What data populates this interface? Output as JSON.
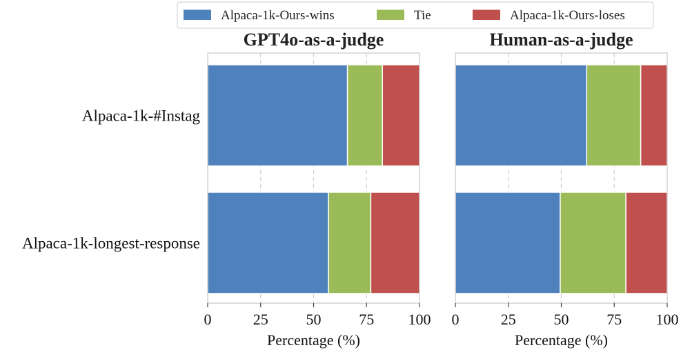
{
  "legend": [
    {
      "label": "Alpaca-1k-Ours-wins",
      "color": "#4f81bd"
    },
    {
      "label": "Tie",
      "color": "#9bbb59"
    },
    {
      "label": "Alpaca-1k-Ours-loses",
      "color": "#c0504d"
    }
  ],
  "chart_data": [
    {
      "type": "bar",
      "orientation": "horizontal-stacked",
      "title": "GPT4o-as-a-judge",
      "categories": [
        "Alpaca-1k-#Instag",
        "Alpaca-1k-longest-response"
      ],
      "series": [
        {
          "name": "Alpaca-1k-Ours-wins",
          "values": [
            66,
            57
          ]
        },
        {
          "name": "Tie",
          "values": [
            16.5,
            20
          ]
        },
        {
          "name": "Alpaca-1k-Ours-loses",
          "values": [
            17.5,
            23
          ]
        }
      ],
      "xlabel": "Percentage (%)",
      "xlim": [
        0,
        100
      ],
      "xticks": [
        "0",
        "25",
        "50",
        "75",
        "100"
      ],
      "grid": "vertical dashed",
      "legend_position": "top"
    },
    {
      "type": "bar",
      "orientation": "horizontal-stacked",
      "title": "Human-as-a-judge",
      "categories": [
        "Alpaca-1k-#Instag",
        "Alpaca-1k-longest-response"
      ],
      "series": [
        {
          "name": "Alpaca-1k-Ours-wins",
          "values": [
            62,
            49.5
          ]
        },
        {
          "name": "Tie",
          "values": [
            25.5,
            31
          ]
        },
        {
          "name": "Alpaca-1k-Ours-loses",
          "values": [
            12.5,
            19.5
          ]
        }
      ],
      "xlabel": "Percentage (%)",
      "xlim": [
        0,
        100
      ],
      "xticks": [
        "0",
        "25",
        "50",
        "75",
        "100"
      ],
      "grid": "vertical dashed",
      "legend_position": "top"
    }
  ]
}
